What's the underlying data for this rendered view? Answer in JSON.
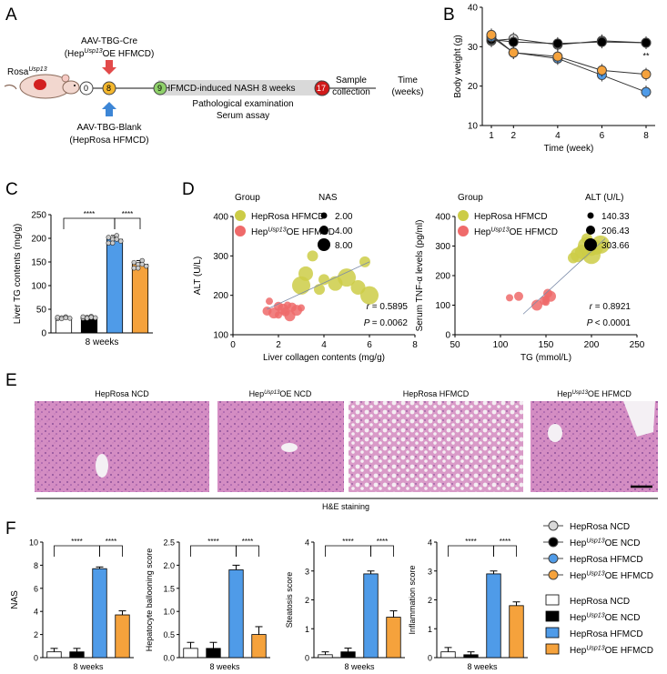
{
  "panels": {
    "A": "A",
    "B": "B",
    "C": "C",
    "D": "D",
    "E": "E",
    "F": "F"
  },
  "colors": {
    "gray": "#d9d9d9",
    "black": "#000000",
    "blue": "#4f9be8",
    "orange": "#f5a23c",
    "yellow": "#cccc47",
    "red": "#ef6a6a",
    "tissue": "#d98bc0"
  },
  "schematic": {
    "mouse_label_main": "Rosa",
    "mouse_label_sup": "Usp13",
    "time_points": [
      "0",
      "8",
      "9",
      "17"
    ],
    "cre_line1": "AAV-TBG-Cre",
    "cre_line2_pre": "(Hep",
    "cre_line2_sup": "Usp13",
    "cre_line2_post": "OE HFMCD)",
    "blank_line1": "AAV-TBG-Blank",
    "blank_line2": "(HepRosa HFMCD)",
    "bar_text": "HFMCD-induced NASH 8 weeks",
    "below1": "Pathological examination",
    "below2": "Serum assay",
    "sample1": "Sample",
    "sample2": "collection",
    "time1": "Time",
    "time2": "(weeks)"
  },
  "legend_f_lines": [
    {
      "pre": "HepRosa NCD",
      "sup": "",
      "post": ""
    },
    {
      "pre": "Hep",
      "sup": "Usp13",
      "post": "OE NCD"
    },
    {
      "pre": "HepRosa HFMCD",
      "sup": "",
      "post": ""
    },
    {
      "pre": "Hep",
      "sup": "Usp13",
      "post": "OE HFMCD"
    }
  ],
  "histology": {
    "labels": [
      {
        "pre": "HepRosa NCD",
        "sup": "",
        "post": ""
      },
      {
        "pre": "Hep",
        "sup": "Usp13",
        "post": "OE NCD"
      },
      {
        "pre": "HepRosa HFMCD",
        "sup": "",
        "post": ""
      },
      {
        "pre": "Hep",
        "sup": "Usp13",
        "post": "OE HFMCD"
      }
    ],
    "caption": "H&E staining"
  },
  "chart_data": [
    {
      "id": "B",
      "type": "line",
      "xlabel": "Time (week)",
      "ylabel": "Body weight (g)",
      "x": [
        1,
        2,
        4,
        6,
        8
      ],
      "xlim": [
        1,
        8
      ],
      "ylim": [
        10,
        40
      ],
      "yticks": [
        10,
        20,
        30,
        40
      ],
      "annotation": "**",
      "series": [
        {
          "color": "gray",
          "values": [
            31.5,
            32.0,
            30.5,
            31.5,
            31.0
          ]
        },
        {
          "color": "black",
          "values": [
            31.8,
            31.2,
            30.8,
            31.2,
            31.0
          ]
        },
        {
          "color": "blue",
          "values": [
            32.5,
            28.5,
            27.0,
            22.8,
            18.5
          ]
        },
        {
          "color": "orange",
          "values": [
            33.0,
            28.5,
            27.5,
            24.0,
            23.0
          ]
        }
      ]
    },
    {
      "id": "C",
      "type": "bar",
      "ylabel": "Liver TG contents (mg/g)",
      "xlabel": "8 weeks",
      "ylim": [
        0,
        250
      ],
      "yticks": [
        0,
        50,
        100,
        150,
        200,
        250
      ],
      "values": [
        32,
        33,
        198,
        145
      ],
      "errors": [
        2,
        2,
        8,
        8
      ],
      "colors": [
        "white",
        "black",
        "blue",
        "orange"
      ],
      "sig": [
        "****",
        "****"
      ]
    },
    {
      "id": "D1",
      "type": "scatter",
      "xlabel": "Liver collagen contents (mg/g)",
      "ylabel": "ALT (U/L)",
      "xlim": [
        0,
        8
      ],
      "ylim": [
        100,
        400
      ],
      "xticks": [
        0,
        2,
        4,
        6,
        8
      ],
      "yticks": [
        100,
        200,
        300,
        400
      ],
      "legend_title": "Group",
      "size_title": "NAS",
      "size_values": [
        "2.00",
        "4.00",
        "8.00"
      ],
      "group_labels": [
        {
          "pre": "HepRosa HFMCD",
          "sup": "",
          "post": ""
        },
        {
          "pre": "Hep",
          "sup": "Usp13",
          "post": "OE HFMCD"
        }
      ],
      "r": "= 0.5895",
      "p": "= 0.0062",
      "yellow": [
        [
          3.5,
          300
        ],
        [
          3.2,
          255
        ],
        [
          3.0,
          225
        ],
        [
          4.0,
          240
        ],
        [
          4.5,
          230
        ],
        [
          5.0,
          245
        ],
        [
          5.8,
          285
        ],
        [
          5.5,
          220
        ],
        [
          6.0,
          200
        ],
        [
          3.8,
          215
        ]
      ],
      "red": [
        [
          1.6,
          185
        ],
        [
          2.0,
          172
        ],
        [
          2.2,
          165
        ],
        [
          2.4,
          175
        ],
        [
          2.6,
          170
        ],
        [
          1.8,
          155
        ],
        [
          2.0,
          150
        ],
        [
          2.3,
          158
        ],
        [
          2.8,
          162
        ],
        [
          3.0,
          168
        ],
        [
          1.5,
          160
        ],
        [
          2.5,
          148
        ]
      ],
      "trend": [
        [
          1.5,
          165
        ],
        [
          6.0,
          285
        ]
      ]
    },
    {
      "id": "D2",
      "type": "scatter",
      "xlabel": "TG (mmol/L)",
      "ylabel": "Serum TNF-α levels (pg/ml)",
      "xlim": [
        50,
        250
      ],
      "ylim": [
        0,
        400
      ],
      "xticks": [
        50,
        100,
        150,
        200,
        250
      ],
      "yticks": [
        0,
        100,
        200,
        300,
        400
      ],
      "legend_title": "Group",
      "size_title": "ALT (U/L)",
      "size_values": [
        "140.33",
        "206.43",
        "303.66"
      ],
      "group_labels": [
        {
          "pre": "HepRosa HFMCD",
          "sup": "",
          "post": ""
        },
        {
          "pre": "Hep",
          "sup": "Usp13",
          "post": "OE HFMCD"
        }
      ],
      "r": "= 0.8921",
      "p": "< 0.0001",
      "yellow": [
        [
          180,
          260
        ],
        [
          190,
          280
        ],
        [
          195,
          300
        ],
        [
          200,
          285
        ],
        [
          205,
          295
        ],
        [
          210,
          305
        ],
        [
          195,
          325
        ],
        [
          185,
          270
        ],
        [
          200,
          270
        ]
      ],
      "red": [
        [
          110,
          125
        ],
        [
          120,
          130
        ],
        [
          140,
          100
        ],
        [
          150,
          120
        ],
        [
          152,
          140
        ],
        [
          155,
          130
        ],
        [
          150,
          110
        ],
        [
          148,
          115
        ]
      ],
      "trend": [
        [
          125,
          70
        ],
        [
          215,
          325
        ]
      ]
    },
    {
      "id": "F1",
      "type": "bar",
      "ylabel": "NAS",
      "xlabel": "8 weeks",
      "ylim": [
        0,
        10
      ],
      "yticks": [
        0,
        2,
        4,
        6,
        8,
        10
      ],
      "values": [
        0.5,
        0.5,
        7.7,
        3.7
      ],
      "errors": [
        0.3,
        0.3,
        0.15,
        0.35
      ],
      "colors": [
        "white",
        "black",
        "blue",
        "orange"
      ],
      "sig": [
        "****",
        "****"
      ]
    },
    {
      "id": "F2",
      "type": "bar",
      "ylabel": "Hepatocyte ballooning score",
      "xlabel": "8 weeks",
      "ylim": [
        0,
        2.5
      ],
      "yticks": [
        0,
        0.5,
        1.0,
        1.5,
        2.0,
        2.5
      ],
      "ytick_labels": [
        "0.0",
        "0.5",
        "1.0",
        "1.5",
        "2.0",
        "2.5"
      ],
      "values": [
        0.2,
        0.2,
        1.9,
        0.5
      ],
      "errors": [
        0.13,
        0.13,
        0.1,
        0.17
      ],
      "colors": [
        "white",
        "black",
        "blue",
        "orange"
      ],
      "sig": [
        "****",
        "****"
      ]
    },
    {
      "id": "F3",
      "type": "bar",
      "ylabel": "Steatosis score",
      "xlabel": "8 weeks",
      "ylim": [
        0,
        4
      ],
      "yticks": [
        0,
        1,
        2,
        3,
        4
      ],
      "values": [
        0.1,
        0.2,
        2.9,
        1.4
      ],
      "errors": [
        0.1,
        0.13,
        0.1,
        0.22
      ],
      "colors": [
        "white",
        "black",
        "blue",
        "orange"
      ],
      "sig": [
        "****",
        "****"
      ]
    },
    {
      "id": "F4",
      "type": "bar",
      "ylabel": "Inflammation score",
      "xlabel": "8 weeks",
      "ylim": [
        0,
        4
      ],
      "yticks": [
        0,
        1,
        2,
        3,
        4
      ],
      "values": [
        0.2,
        0.1,
        2.9,
        1.8
      ],
      "errors": [
        0.15,
        0.1,
        0.1,
        0.13
      ],
      "colors": [
        "white",
        "black",
        "blue",
        "orange"
      ],
      "sig": [
        "****",
        "****"
      ]
    }
  ]
}
